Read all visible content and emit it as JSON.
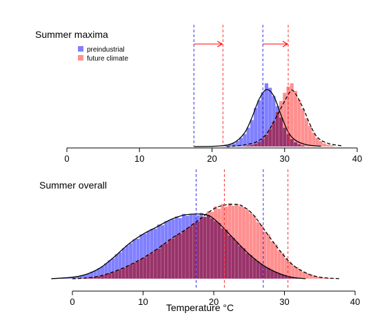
{
  "colors": {
    "preindustrial": "#8080ff",
    "future": "#ff9090",
    "overlap": "#99336a",
    "arrow": "#ff0000"
  },
  "chart_data": [
    {
      "type": "histogram",
      "title": "Summer maxima",
      "xlabel": "",
      "xlim": [
        -2,
        40
      ],
      "ticks": [
        0,
        10,
        20,
        30,
        40
      ],
      "legend": {
        "position": "top-left",
        "entries": [
          "preindustrial",
          "future climate"
        ]
      },
      "series": [
        {
          "name": "preindustrial",
          "bins": [
            {
              "x": 21.5,
              "y": 0.01
            },
            {
              "x": 22.0,
              "y": 0.02
            },
            {
              "x": 22.5,
              "y": 0.03
            },
            {
              "x": 23.0,
              "y": 0.05
            },
            {
              "x": 23.5,
              "y": 0.09
            },
            {
              "x": 24.0,
              "y": 0.14
            },
            {
              "x": 24.5,
              "y": 0.2
            },
            {
              "x": 25.0,
              "y": 0.3
            },
            {
              "x": 25.5,
              "y": 0.42
            },
            {
              "x": 26.0,
              "y": 0.61
            },
            {
              "x": 26.5,
              "y": 0.73
            },
            {
              "x": 27.0,
              "y": 0.86
            },
            {
              "x": 27.5,
              "y": 1.0
            },
            {
              "x": 28.0,
              "y": 0.93
            },
            {
              "x": 28.5,
              "y": 0.8
            },
            {
              "x": 29.0,
              "y": 0.64
            },
            {
              "x": 29.5,
              "y": 0.46
            },
            {
              "x": 30.0,
              "y": 0.3
            },
            {
              "x": 30.5,
              "y": 0.2
            },
            {
              "x": 31.0,
              "y": 0.12
            },
            {
              "x": 31.5,
              "y": 0.07
            },
            {
              "x": 32.0,
              "y": 0.04
            },
            {
              "x": 32.5,
              "y": 0.02
            }
          ],
          "curve": [
            [
              17.5,
              0
            ],
            [
              21,
              0.01
            ],
            [
              23,
              0.06
            ],
            [
              24.5,
              0.22
            ],
            [
              25.5,
              0.46
            ],
            [
              26.5,
              0.75
            ],
            [
              27.5,
              0.9
            ],
            [
              28.5,
              0.8
            ],
            [
              29.5,
              0.5
            ],
            [
              30.5,
              0.23
            ],
            [
              31.5,
              0.1
            ],
            [
              33,
              0.03
            ],
            [
              35,
              0.005
            ]
          ]
        },
        {
          "name": "future climate",
          "bins": [
            {
              "x": 24.5,
              "y": 0.01
            },
            {
              "x": 25.0,
              "y": 0.02
            },
            {
              "x": 25.5,
              "y": 0.03
            },
            {
              "x": 26.0,
              "y": 0.05
            },
            {
              "x": 26.5,
              "y": 0.08
            },
            {
              "x": 27.0,
              "y": 0.13
            },
            {
              "x": 27.5,
              "y": 0.19
            },
            {
              "x": 28.0,
              "y": 0.28
            },
            {
              "x": 28.5,
              "y": 0.4
            },
            {
              "x": 29.0,
              "y": 0.55
            },
            {
              "x": 29.5,
              "y": 0.72
            },
            {
              "x": 30.0,
              "y": 0.85
            },
            {
              "x": 30.5,
              "y": 0.95
            },
            {
              "x": 31.0,
              "y": 1.0
            },
            {
              "x": 31.5,
              "y": 0.88
            },
            {
              "x": 32.0,
              "y": 0.74
            },
            {
              "x": 32.5,
              "y": 0.6
            },
            {
              "x": 33.0,
              "y": 0.45
            },
            {
              "x": 33.5,
              "y": 0.33
            },
            {
              "x": 34.0,
              "y": 0.22
            },
            {
              "x": 34.5,
              "y": 0.14
            },
            {
              "x": 35.0,
              "y": 0.09
            },
            {
              "x": 35.5,
              "y": 0.05
            },
            {
              "x": 36.0,
              "y": 0.03
            },
            {
              "x": 36.5,
              "y": 0.02
            }
          ],
          "curve": [
            [
              22,
              0
            ],
            [
              24,
              0.02
            ],
            [
              26,
              0.07
            ],
            [
              27.5,
              0.2
            ],
            [
              29,
              0.5
            ],
            [
              30.5,
              0.82
            ],
            [
              31.2,
              0.88
            ],
            [
              32.5,
              0.62
            ],
            [
              33.5,
              0.35
            ],
            [
              34.5,
              0.15
            ],
            [
              36,
              0.05
            ],
            [
              38,
              0.01
            ]
          ]
        }
      ],
      "vlines": [
        {
          "x": 17.5,
          "series": "preindustrial"
        },
        {
          "x": 27.0,
          "series": "preindustrial"
        },
        {
          "x": 21.5,
          "series": "future climate"
        },
        {
          "x": 30.5,
          "series": "future climate"
        }
      ],
      "arrows": [
        {
          "from": 17.5,
          "to": 21.5
        },
        {
          "from": 27.0,
          "to": 30.5
        }
      ]
    },
    {
      "type": "histogram",
      "title": "Summer overall",
      "xlabel": "Temperature °C",
      "xlim": [
        -3.5,
        38.5
      ],
      "ticks": [
        0,
        10,
        20,
        30,
        40
      ],
      "series": [
        {
          "name": "preindustrial",
          "curve": [
            [
              -3,
              0
            ],
            [
              0,
              0.02
            ],
            [
              2,
              0.06
            ],
            [
              4,
              0.15
            ],
            [
              6,
              0.3
            ],
            [
              8,
              0.47
            ],
            [
              10,
              0.6
            ],
            [
              12,
              0.7
            ],
            [
              14,
              0.8
            ],
            [
              16,
              0.86
            ],
            [
              18,
              0.87
            ],
            [
              19.5,
              0.84
            ],
            [
              21,
              0.72
            ],
            [
              23,
              0.52
            ],
            [
              25,
              0.33
            ],
            [
              27,
              0.18
            ],
            [
              29,
              0.08
            ],
            [
              31,
              0.02
            ],
            [
              33,
              0
            ]
          ]
        },
        {
          "name": "future climate",
          "curve": [
            [
              0,
              0
            ],
            [
              2,
              0.01
            ],
            [
              4,
              0.04
            ],
            [
              6,
              0.1
            ],
            [
              8,
              0.18
            ],
            [
              10,
              0.28
            ],
            [
              12,
              0.4
            ],
            [
              14,
              0.54
            ],
            [
              16,
              0.66
            ],
            [
              18,
              0.8
            ],
            [
              20,
              0.94
            ],
            [
              21.5,
              0.99
            ],
            [
              23,
              1.0
            ],
            [
              24,
              0.98
            ],
            [
              25.5,
              0.87
            ],
            [
              27,
              0.68
            ],
            [
              29,
              0.42
            ],
            [
              31,
              0.2
            ],
            [
              33,
              0.08
            ],
            [
              35,
              0.02
            ],
            [
              38,
              0
            ]
          ]
        }
      ],
      "vlines": [
        {
          "x": 17.5,
          "series": "preindustrial"
        },
        {
          "x": 27.0,
          "series": "preindustrial"
        },
        {
          "x": 21.5,
          "series": "future climate"
        },
        {
          "x": 30.5,
          "series": "future climate"
        }
      ]
    }
  ]
}
